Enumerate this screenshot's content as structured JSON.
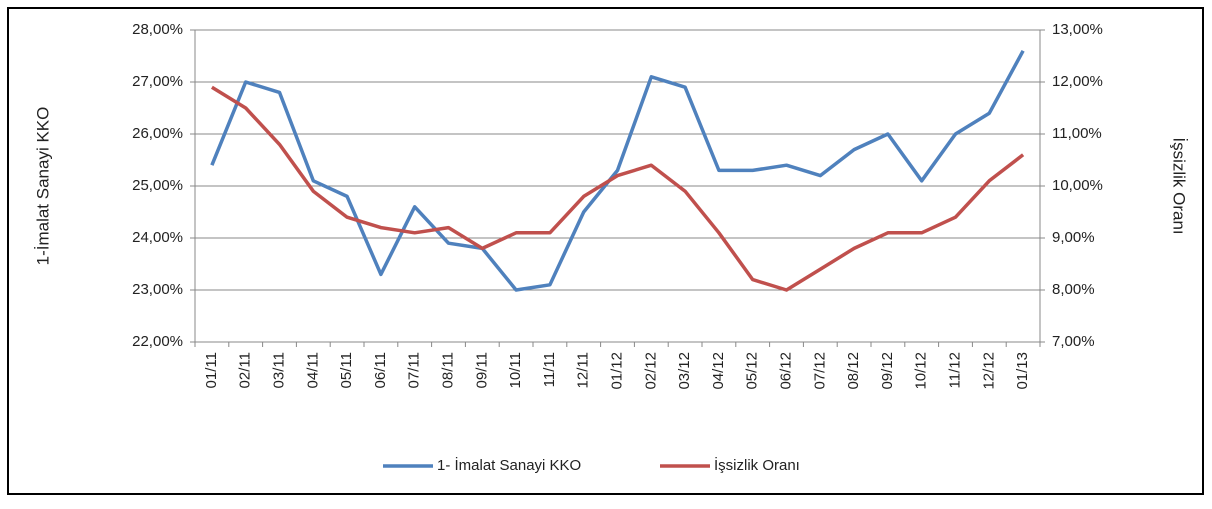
{
  "chart_data": {
    "type": "line",
    "categories": [
      "01/11",
      "02/11",
      "03/11",
      "04/11",
      "05/11",
      "06/11",
      "07/11",
      "08/11",
      "09/11",
      "10/11",
      "11/11",
      "12/11",
      "01/12",
      "02/12",
      "03/12",
      "04/12",
      "05/12",
      "06/12",
      "07/12",
      "08/12",
      "09/12",
      "10/12",
      "11/12",
      "12/12",
      "01/13"
    ],
    "series": [
      {
        "name": "1- İmalat Sanayi KKO",
        "color": "#4f81bd",
        "axis": "y",
        "values": [
          25.4,
          27.0,
          26.8,
          25.1,
          24.8,
          23.3,
          24.6,
          23.9,
          23.8,
          23.0,
          23.1,
          24.5,
          25.3,
          27.1,
          26.9,
          25.3,
          25.3,
          25.4,
          25.2,
          25.7,
          26.0,
          25.1,
          26.0,
          26.4,
          27.6
        ]
      },
      {
        "name": "İşsizlik Oranı",
        "color": "#c0504d",
        "axis": "y2",
        "values": [
          11.9,
          11.5,
          10.8,
          9.9,
          9.4,
          9.2,
          9.1,
          9.2,
          8.8,
          9.1,
          9.1,
          9.8,
          10.2,
          10.4,
          9.9,
          9.1,
          8.2,
          8.0,
          8.4,
          8.8,
          9.1,
          9.1,
          9.4,
          10.1,
          10.6
        ]
      }
    ],
    "ylabel": "1-İmalat Sanayi KKO",
    "y2label": "İşsizlik Oranı",
    "ylim": [
      22,
      28
    ],
    "yticks": [
      {
        "value": 22,
        "label": "22,00%"
      },
      {
        "value": 23,
        "label": "23,00%"
      },
      {
        "value": 24,
        "label": "24,00%"
      },
      {
        "value": 25,
        "label": "25,00%"
      },
      {
        "value": 26,
        "label": "26,00%"
      },
      {
        "value": 27,
        "label": "27,00%"
      },
      {
        "value": 28,
        "label": "28,00%"
      }
    ],
    "y2lim": [
      7,
      13
    ],
    "y2ticks": [
      {
        "value": 7,
        "label": "7,00%"
      },
      {
        "value": 8,
        "label": "8,00%"
      },
      {
        "value": 9,
        "label": "9,00%"
      },
      {
        "value": 10,
        "label": "10,00%"
      },
      {
        "value": 11,
        "label": "11,00%"
      },
      {
        "value": 12,
        "label": "12,00%"
      },
      {
        "value": 13,
        "label": "13,00%"
      }
    ],
    "grid": true,
    "legend": "bottom"
  }
}
